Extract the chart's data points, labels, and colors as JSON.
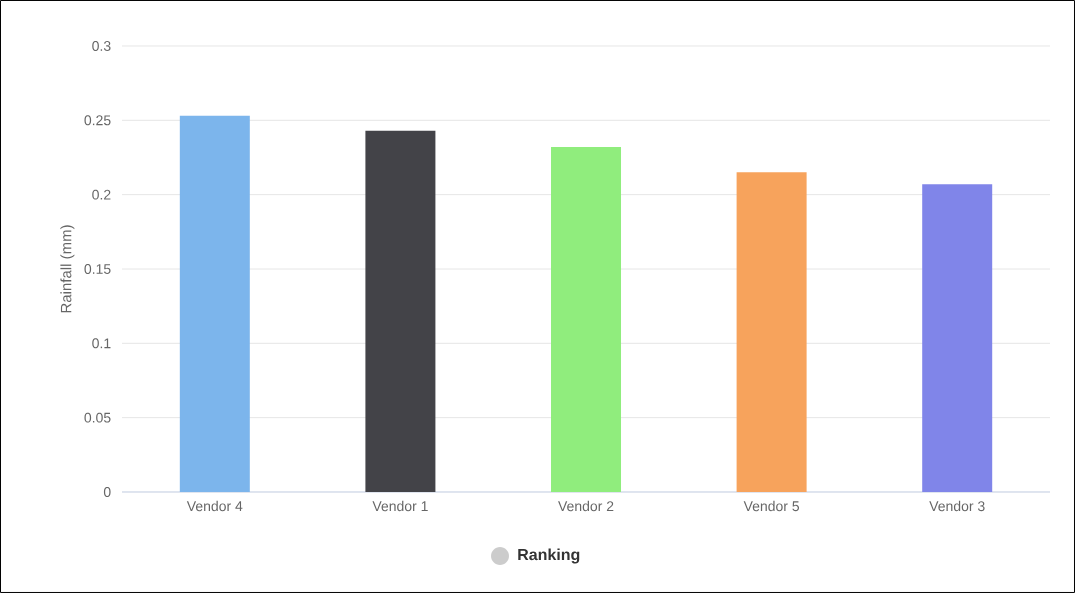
{
  "chart_data": {
    "type": "bar",
    "ylabel": "Rainfall (mm)",
    "categories": [
      "Vendor 4",
      "Vendor 1",
      "Vendor 2",
      "Vendor 5",
      "Vendor 3"
    ],
    "series": [
      {
        "name": "Ranking",
        "color": "#cccccc",
        "colors": [
          "#7cb5ec",
          "#434348",
          "#90ed7d",
          "#f7a35c",
          "#8085e9"
        ],
        "values": [
          0.253,
          0.243,
          0.232,
          0.215,
          0.207
        ]
      }
    ],
    "ylim": [
      0,
      0.3
    ],
    "yticks": [
      0,
      0.05,
      0.1,
      0.15,
      0.2,
      0.25,
      0.3
    ],
    "grid": "y",
    "legend": "bottom"
  }
}
